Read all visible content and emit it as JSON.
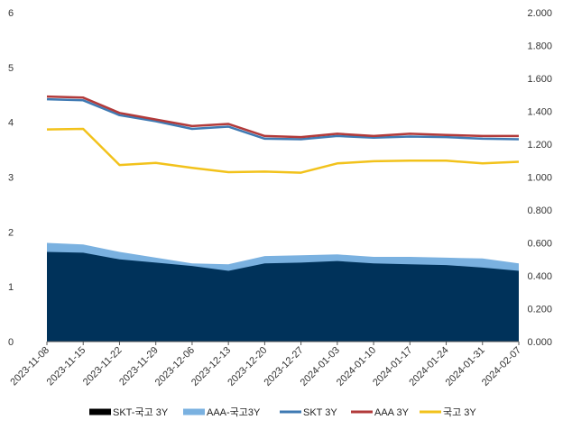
{
  "chart_data": {
    "type": "area+line",
    "x": [
      "2023-11-08",
      "2023-11-15",
      "2023-11-22",
      "2023-11-29",
      "2023-12-06",
      "2023-12-13",
      "2023-12-20",
      "2023-12-27",
      "2024-01-03",
      "2024-01-10",
      "2024-01-17",
      "2024-01-24",
      "2024-01-31",
      "2024-02-07"
    ],
    "left_ylim": [
      0,
      6
    ],
    "left_ticks": [
      "0",
      "1",
      "2",
      "3",
      "4",
      "5",
      "6"
    ],
    "right_ylim": [
      0,
      2.0
    ],
    "right_ticks": [
      "0.000",
      "0.200",
      "0.400",
      "0.600",
      "0.800",
      "1.000",
      "1.200",
      "1.400",
      "1.600",
      "1.800",
      "2.000"
    ],
    "series": [
      {
        "name": "SKT-국고 3Y",
        "kind": "area",
        "axis": "right",
        "color": "#00325a",
        "values": [
          0.545,
          0.54,
          0.5,
          0.48,
          0.46,
          0.43,
          0.475,
          0.48,
          0.49,
          0.475,
          0.47,
          0.465,
          0.45,
          0.43
        ]
      },
      {
        "name": "AAA-국고3Y",
        "kind": "area",
        "axis": "right",
        "color": "#7ab1e0",
        "values": [
          0.6,
          0.59,
          0.545,
          0.51,
          0.475,
          0.47,
          0.52,
          0.525,
          0.53,
          0.515,
          0.515,
          0.51,
          0.505,
          0.475
        ]
      },
      {
        "name": "SKT 3Y",
        "kind": "line",
        "axis": "left",
        "color": "#3f7ab3",
        "values": [
          4.42,
          4.4,
          4.13,
          4.02,
          3.88,
          3.92,
          3.7,
          3.69,
          3.75,
          3.72,
          3.74,
          3.73,
          3.7,
          3.69
        ]
      },
      {
        "name": "AAA 3Y",
        "kind": "line",
        "axis": "left",
        "color": "#b23a3a",
        "values": [
          4.47,
          4.45,
          4.17,
          4.05,
          3.93,
          3.97,
          3.75,
          3.73,
          3.79,
          3.75,
          3.79,
          3.77,
          3.75,
          3.75
        ]
      },
      {
        "name": "국고 3Y",
        "kind": "line",
        "axis": "left",
        "color": "#f2c21b",
        "values": [
          3.87,
          3.88,
          3.22,
          3.26,
          3.17,
          3.09,
          3.1,
          3.08,
          3.25,
          3.29,
          3.3,
          3.3,
          3.25,
          3.28
        ]
      }
    ],
    "legend_position": "bottom"
  }
}
